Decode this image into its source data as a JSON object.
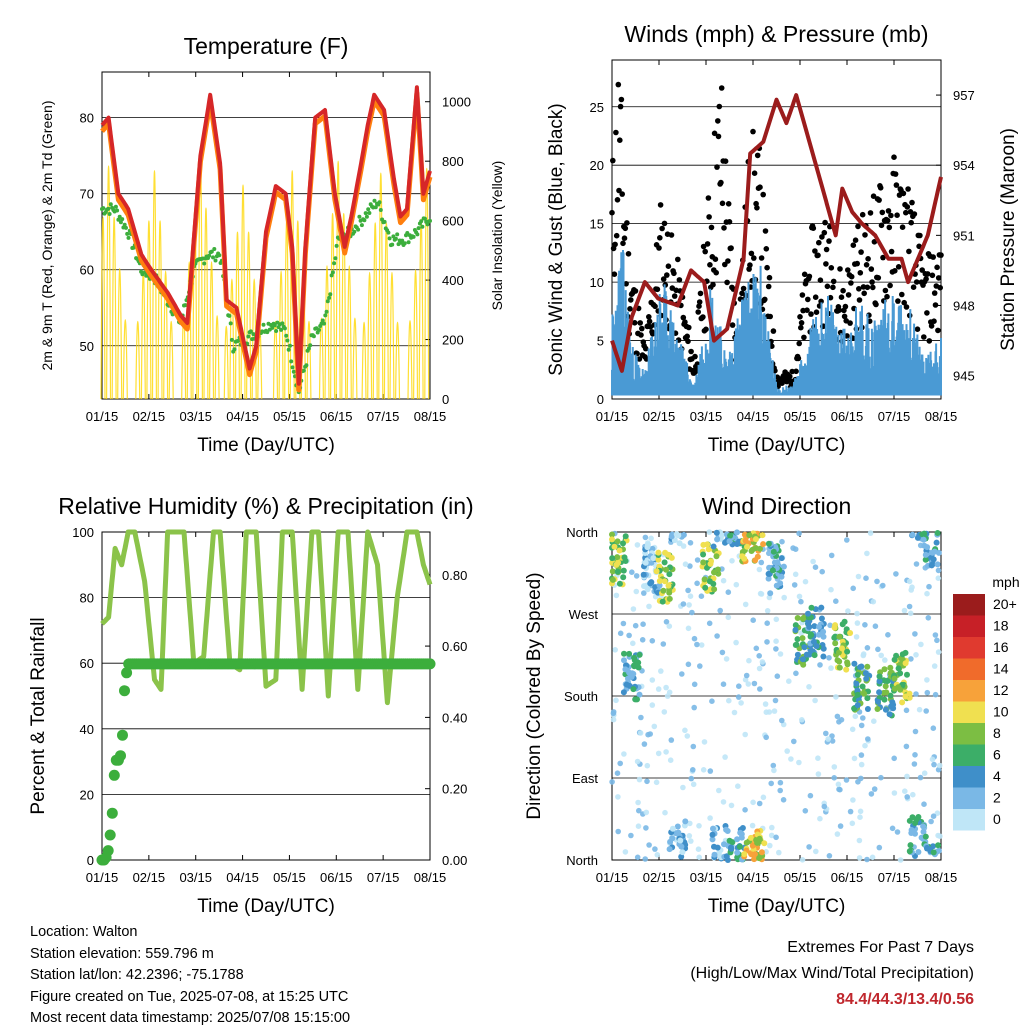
{
  "charts": [
    {
      "id": "temperature",
      "title": "Temperature (F)",
      "xlabel": "Time (Day/UTC)",
      "ylabel_left": "2m & 9m T (Red, Orange) & 2m Td (Green)",
      "ylabel_right": "Solar Insolation (Yellow)",
      "xticks": [
        "01/15",
        "02/15",
        "03/15",
        "04/15",
        "05/15",
        "06/15",
        "07/15",
        "08/15"
      ],
      "yticks_left": [
        "50",
        "60",
        "70",
        "80"
      ],
      "yticks_right": [
        "0",
        "200",
        "400",
        "600",
        "800",
        "1000"
      ]
    },
    {
      "id": "winds",
      "title": "Winds (mph) & Pressure (mb)",
      "xlabel": "Time (Day/UTC)",
      "ylabel_left": "Sonic Wind & Gust (Blue, Black)",
      "ylabel_right": "Station Pressure (Maroon)",
      "xticks": [
        "01/15",
        "02/15",
        "03/15",
        "04/15",
        "05/15",
        "06/15",
        "07/15",
        "08/15"
      ],
      "yticks_left": [
        "0",
        "5",
        "10",
        "15",
        "20",
        "25"
      ],
      "yticks_right": [
        "945",
        "948",
        "951",
        "954",
        "957"
      ]
    },
    {
      "id": "humidity",
      "title": "Relative Humidity (%) & Precipitation (in)",
      "xlabel": "Time (Day/UTC)",
      "ylabel_left": "Percent & Total Rainfall",
      "xticks": [
        "01/15",
        "02/15",
        "03/15",
        "04/15",
        "05/15",
        "06/15",
        "07/15",
        "08/15"
      ],
      "yticks_left": [
        "0",
        "20",
        "40",
        "60",
        "80",
        "100"
      ],
      "yticks_right": [
        "0.00",
        "0.20",
        "0.40",
        "0.60",
        "0.80"
      ]
    },
    {
      "id": "direction",
      "title": "Wind Direction",
      "xlabel": "Time (Day/UTC)",
      "ylabel_left": "Direction (Colored By Speed)",
      "xticks": [
        "01/15",
        "02/15",
        "03/15",
        "04/15",
        "05/15",
        "06/15",
        "07/15",
        "08/15"
      ],
      "yticks_left": [
        "North",
        "East",
        "South",
        "West",
        "North"
      ],
      "legend_title": "mph",
      "legend_labels": [
        "20+",
        "18",
        "16",
        "14",
        "12",
        "10",
        "8",
        "6",
        "4",
        "2",
        "0"
      ]
    }
  ],
  "chart_data": [
    {
      "type": "line",
      "x_dates": [
        "01/15",
        "02/15",
        "03/15",
        "04/15",
        "05/15",
        "06/15",
        "07/15",
        "08/15"
      ],
      "ylim_left": [
        43,
        86
      ],
      "ylim_right": [
        0,
        1100
      ],
      "series": [
        {
          "name": "2m T",
          "color": "#d62728",
          "x": [
            0,
            0.02,
            0.05,
            0.08,
            0.12,
            0.15,
            0.2,
            0.24,
            0.26,
            0.3,
            0.33,
            0.36,
            0.38,
            0.41,
            0.45,
            0.47,
            0.5,
            0.53,
            0.56,
            0.58,
            0.6,
            0.62,
            0.65,
            0.68,
            0.71,
            0.74,
            0.76,
            0.79,
            0.81,
            0.83,
            0.86,
            0.89,
            0.91,
            0.93,
            0.96,
            0.98,
            1.0
          ],
          "y": [
            79,
            80,
            70,
            68,
            62,
            60,
            57,
            54,
            53,
            75,
            83,
            74,
            56,
            55,
            47,
            50,
            65,
            71,
            70,
            63,
            45,
            63,
            80,
            81,
            70,
            63,
            67,
            74,
            79,
            83,
            81,
            72,
            67,
            68,
            84,
            70,
            73
          ]
        },
        {
          "name": "9m T",
          "color": "#ff7f0e",
          "x": [
            0,
            0.05,
            0.1,
            0.2,
            0.3,
            0.4,
            0.5,
            0.6,
            0.7,
            0.8,
            0.9,
            1.0
          ],
          "y": [
            78,
            70,
            64,
            57,
            74,
            55,
            68,
            46,
            73,
            75,
            70,
            71
          ]
        },
        {
          "name": "2m Td",
          "color": "#3cae3c",
          "x": [
            0,
            0.04,
            0.08,
            0.12,
            0.16,
            0.2,
            0.24,
            0.28,
            0.32,
            0.36,
            0.4,
            0.44,
            0.48,
            0.52,
            0.56,
            0.6,
            0.64,
            0.68,
            0.72,
            0.76,
            0.8,
            0.84,
            0.88,
            0.92,
            0.96,
            1.0
          ],
          "y": [
            68,
            68,
            65,
            60,
            59,
            56,
            53,
            60,
            62,
            62,
            50,
            51,
            52,
            53,
            52,
            44,
            51,
            53,
            64,
            65,
            67,
            69,
            64,
            64,
            65,
            67
          ]
        },
        {
          "name": "Solar",
          "color": "#ffd700",
          "axis": "right",
          "peaks_x": [
            0.02,
            0.16,
            0.3,
            0.43,
            0.58,
            0.72,
            0.85,
            0.99
          ],
          "peaks_y": [
            980,
            960,
            1030,
            900,
            960,
            1000,
            950,
            970
          ]
        }
      ]
    },
    {
      "type": "line",
      "x_dates": [
        "01/15",
        "02/15",
        "03/15",
        "04/15",
        "05/15",
        "06/15",
        "07/15",
        "08/15"
      ],
      "ylim_left": [
        0,
        29
      ],
      "ylim_right": [
        944,
        958.5
      ],
      "series": [
        {
          "name": "Pressure",
          "color": "#9b1c1c",
          "axis": "right",
          "x": [
            0,
            0.03,
            0.06,
            0.1,
            0.14,
            0.2,
            0.24,
            0.28,
            0.31,
            0.35,
            0.4,
            0.42,
            0.46,
            0.5,
            0.53,
            0.56,
            0.6,
            0.64,
            0.68,
            0.7,
            0.73,
            0.76,
            0.8,
            0.84,
            0.88,
            0.9,
            0.93,
            0.96,
            1.0
          ],
          "y": [
            946.5,
            945.2,
            947.5,
            949,
            948.3,
            948,
            949.5,
            949,
            946.5,
            947,
            950,
            954.5,
            955,
            956.8,
            955.8,
            957,
            955,
            953,
            951,
            953,
            952,
            951.5,
            951,
            950,
            950,
            949,
            950,
            951,
            953.5
          ]
        },
        {
          "name": "Gust",
          "color": "#000000",
          "x": [
            0,
            0.02,
            0.05,
            0.1,
            0.15,
            0.2,
            0.25,
            0.3,
            0.33,
            0.38,
            0.42,
            0.45,
            0.5,
            0.55,
            0.6,
            0.65,
            0.7,
            0.75,
            0.8,
            0.85,
            0.9,
            0.95,
            1.0
          ],
          "y": [
            17,
            26,
            12,
            4,
            15,
            10,
            3,
            17,
            25,
            5,
            20,
            18,
            2,
            2,
            12,
            14,
            9,
            13,
            15,
            18,
            16,
            10,
            12
          ]
        },
        {
          "name": "Wind",
          "color": "#4a9ad4",
          "x": [
            0,
            0.03,
            0.06,
            0.1,
            0.15,
            0.2,
            0.25,
            0.3,
            0.35,
            0.4,
            0.45,
            0.5,
            0.55,
            0.6,
            0.65,
            0.7,
            0.75,
            0.8,
            0.85,
            0.9,
            0.95,
            1.0
          ],
          "y": [
            6,
            12,
            4,
            2,
            9,
            5,
            1,
            9,
            3,
            8,
            10,
            1,
            1,
            5,
            8,
            5,
            7,
            6,
            8,
            7,
            3,
            5
          ]
        }
      ]
    },
    {
      "type": "line",
      "x_dates": [
        "01/15",
        "02/15",
        "03/15",
        "04/15",
        "05/15",
        "06/15",
        "07/15",
        "08/15"
      ],
      "ylim_left": [
        0,
        100
      ],
      "ylim_right": [
        0,
        0.92
      ],
      "series": [
        {
          "name": "Relative Humidity",
          "color": "#8bc34a",
          "x": [
            0,
            0.02,
            0.04,
            0.06,
            0.08,
            0.1,
            0.13,
            0.16,
            0.18,
            0.2,
            0.22,
            0.25,
            0.28,
            0.31,
            0.34,
            0.36,
            0.39,
            0.42,
            0.44,
            0.47,
            0.5,
            0.53,
            0.55,
            0.58,
            0.61,
            0.64,
            0.66,
            0.69,
            0.72,
            0.75,
            0.78,
            0.81,
            0.84,
            0.87,
            0.9,
            0.93,
            0.96,
            0.98,
            1.0
          ],
          "y": [
            72,
            74,
            95,
            90,
            100,
            100,
            85,
            55,
            52,
            100,
            100,
            100,
            60,
            62,
            100,
            100,
            60,
            58,
            100,
            100,
            53,
            55,
            100,
            100,
            52,
            100,
            100,
            50,
            100,
            100,
            52,
            100,
            90,
            48,
            80,
            100,
            100,
            90,
            84
          ]
        },
        {
          "name": "Total Precipitation",
          "color": "#3cae3c",
          "axis": "right",
          "x": [
            0,
            0.01,
            0.02,
            0.03,
            0.04,
            0.05,
            0.06,
            0.07,
            0.08,
            1.0
          ],
          "y": [
            0.0,
            0.0,
            0.03,
            0.11,
            0.28,
            0.28,
            0.3,
            0.5,
            0.55,
            0.55
          ]
        }
      ]
    },
    {
      "type": "scatter",
      "x_dates": [
        "01/15",
        "02/15",
        "03/15",
        "04/15",
        "05/15",
        "06/15",
        "07/15",
        "08/15"
      ],
      "y_categories": [
        "North",
        "East",
        "South",
        "West",
        "North"
      ],
      "ylim": [
        0,
        360
      ],
      "colorbar": {
        "label": "mph",
        "colors": [
          "#9b1c1c",
          "#c72027",
          "#e03a2f",
          "#f06b2b",
          "#f7a23a",
          "#f0e050",
          "#7cbe43",
          "#3cae68",
          "#3f8fc9",
          "#7ab8e6",
          "#bfe6f7"
        ]
      },
      "clusters": [
        {
          "x": 0.02,
          "dir": 330,
          "speed": 8
        },
        {
          "x": 0.06,
          "dir": 200,
          "speed": 4
        },
        {
          "x": 0.12,
          "dir": 320,
          "speed": 2
        },
        {
          "x": 0.16,
          "dir": 310,
          "speed": 8
        },
        {
          "x": 0.2,
          "dir": 15,
          "speed": 2
        },
        {
          "x": 0.3,
          "dir": 320,
          "speed": 8
        },
        {
          "x": 0.33,
          "dir": 10,
          "speed": 2
        },
        {
          "x": 0.38,
          "dir": 10,
          "speed": 4
        },
        {
          "x": 0.42,
          "dir": 355,
          "speed": 10
        },
        {
          "x": 0.44,
          "dir": 5,
          "speed": 10
        },
        {
          "x": 0.5,
          "dir": 320,
          "speed": 4
        },
        {
          "x": 0.58,
          "dir": 240,
          "speed": 6
        },
        {
          "x": 0.62,
          "dir": 250,
          "speed": 4
        },
        {
          "x": 0.7,
          "dir": 235,
          "speed": 8
        },
        {
          "x": 0.76,
          "dir": 190,
          "speed": 6
        },
        {
          "x": 0.83,
          "dir": 185,
          "speed": 6
        },
        {
          "x": 0.88,
          "dir": 200,
          "speed": 8
        },
        {
          "x": 0.93,
          "dir": 20,
          "speed": 4
        },
        {
          "x": 0.97,
          "dir": 350,
          "speed": 4
        }
      ]
    }
  ],
  "info": {
    "location": "Location: Walton",
    "elevation": "Station elevation: 559.796 m",
    "latlon": "Station lat/lon: 42.2396; -75.1788",
    "created": "Figure created on Tue, 2025-07-08, at 15:25 UTC",
    "recent": "Most recent data timestamp: 2025/07/08 15:15:00"
  },
  "extremes": {
    "title": "Extremes For Past 7 Days",
    "subtitle": "(High/Low/Max Wind/Total Precipitation)",
    "values": "84.4/44.3/13.4/0.56"
  }
}
